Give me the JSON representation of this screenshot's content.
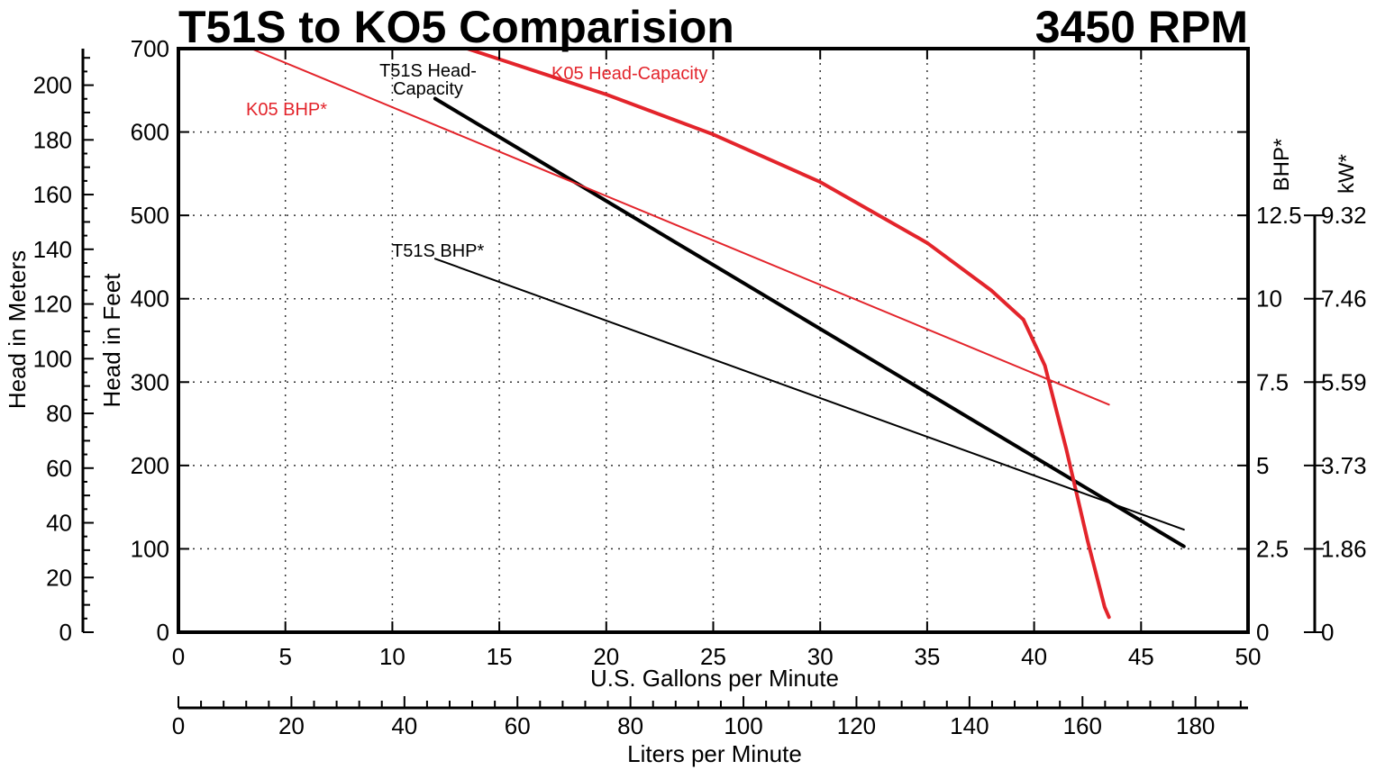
{
  "chart_data": {
    "type": "line",
    "title": "T51S to KO5 Comparision",
    "subtitle": "3450 RPM",
    "xlabel": "U.S. Gallons per Minute",
    "x2label": "Liters per Minute",
    "ylabel": "Head in Feet",
    "ylabel_meters": "Head in Meters",
    "ylabel_bhp": "BHP*",
    "ylabel_kw": "kW*",
    "xlim": [
      0,
      50
    ],
    "ylim": [
      0,
      700
    ],
    "lpm_lim": [
      0,
      189.3
    ],
    "meters_lim": [
      0,
      213.36
    ],
    "bhp_lim": [
      0,
      17.5
    ],
    "grid": true,
    "x_ticks": [
      0,
      5,
      10,
      15,
      20,
      25,
      30,
      35,
      40,
      45,
      50
    ],
    "y_ticks": [
      0,
      100,
      200,
      300,
      400,
      500,
      600,
      700
    ],
    "lpm_ticks": [
      0,
      20,
      40,
      60,
      80,
      100,
      120,
      140,
      160,
      180
    ],
    "meters_ticks": [
      0,
      20,
      40,
      60,
      80,
      100,
      120,
      140,
      160,
      180,
      200
    ],
    "bhp_ticks": [
      {
        "value": 0,
        "label": "0"
      },
      {
        "value": 2.5,
        "label": "2.5"
      },
      {
        "value": 5,
        "label": "5"
      },
      {
        "value": 7.5,
        "label": "7.5"
      },
      {
        "value": 10,
        "label": "10"
      },
      {
        "value": 12.5,
        "label": "12.5"
      }
    ],
    "kw_ticks": [
      {
        "value": 0,
        "label": "0"
      },
      {
        "value": 2.5,
        "label": "1.86"
      },
      {
        "value": 5,
        "label": "3.73"
      },
      {
        "value": 7.5,
        "label": "5.59"
      },
      {
        "value": 10,
        "label": "7.46"
      },
      {
        "value": 12.5,
        "label": "9.32"
      }
    ],
    "series": [
      {
        "name": "T51S Head-Capacity",
        "label_lines": [
          "T51S Head-",
          "Capacity"
        ],
        "color": "#000000",
        "weight": "bold",
        "x": [
          12,
          47
        ],
        "y": [
          640,
          103
        ]
      },
      {
        "name": "K05 Head-Capacity",
        "label_lines": [
          "K05 Head-Capacity"
        ],
        "color": "#e3242b",
        "weight": "bold",
        "x": [
          13.5,
          20,
          25,
          30,
          35,
          38,
          39.5,
          40.5,
          41.5,
          42.5,
          43.3,
          43.5
        ],
        "y": [
          700,
          645,
          597,
          540,
          467,
          410,
          375,
          320,
          220,
          110,
          30,
          18
        ]
      },
      {
        "name": "K05 BHP*",
        "label_lines": [
          "K05 BHP*"
        ],
        "color": "#e3242b",
        "weight": "normal",
        "x": [
          3.4,
          43.5
        ],
        "y": [
          700,
          273
        ]
      },
      {
        "name": "T51S BHP*",
        "label_lines": [
          "T51S BHP*"
        ],
        "color": "#000000",
        "weight": "normal",
        "x": [
          12,
          47
        ],
        "y": [
          448,
          123
        ]
      }
    ]
  }
}
